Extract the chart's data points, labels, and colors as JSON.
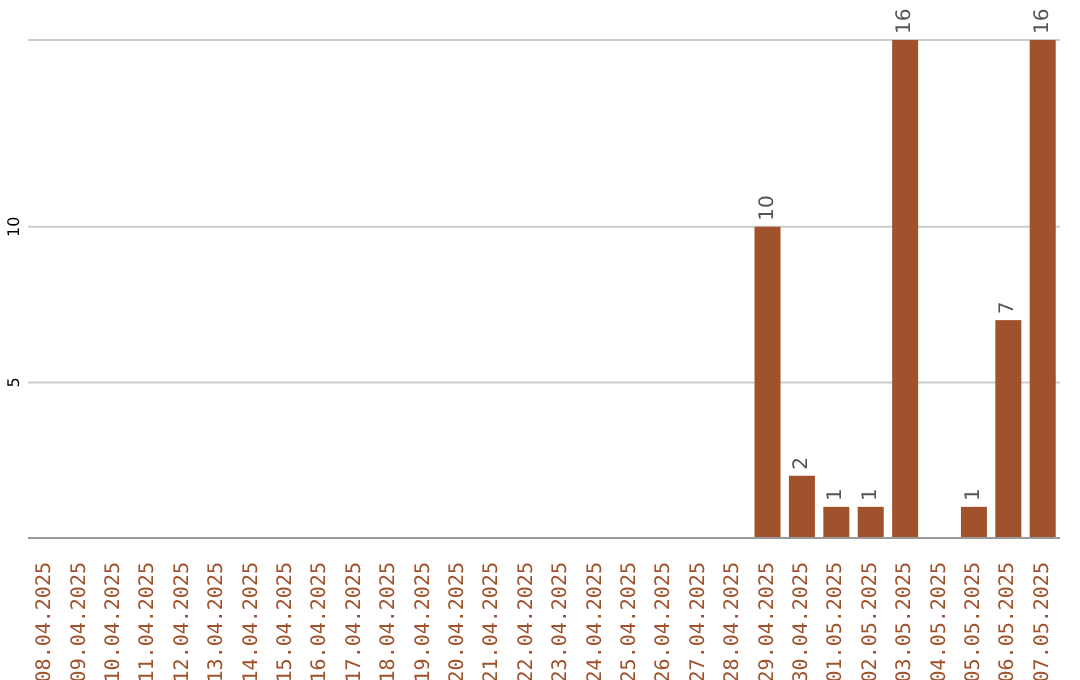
{
  "chart_data": {
    "type": "bar",
    "categories": [
      "08.04.2025",
      "09.04.2025",
      "10.04.2025",
      "11.04.2025",
      "12.04.2025",
      "13.04.2025",
      "14.04.2025",
      "15.04.2025",
      "16.04.2025",
      "17.04.2025",
      "18.04.2025",
      "19.04.2025",
      "20.04.2025",
      "21.04.2025",
      "22.04.2025",
      "23.04.2025",
      "24.04.2025",
      "25.04.2025",
      "26.04.2025",
      "27.04.2025",
      "28.04.2025",
      "29.04.2025",
      "30.04.2025",
      "01.05.2025",
      "02.05.2025",
      "03.05.2025",
      "04.05.2025",
      "05.05.2025",
      "06.05.2025",
      "07.05.2025"
    ],
    "values": [
      0,
      0,
      0,
      0,
      0,
      0,
      0,
      0,
      0,
      0,
      0,
      0,
      0,
      0,
      0,
      0,
      0,
      0,
      0,
      0,
      0,
      10,
      2,
      1,
      1,
      16,
      0,
      1,
      7,
      16
    ],
    "value_labels": [
      null,
      null,
      null,
      null,
      null,
      null,
      null,
      null,
      null,
      null,
      null,
      null,
      null,
      null,
      null,
      null,
      null,
      null,
      null,
      null,
      null,
      "10",
      "2",
      "1",
      "1",
      "16",
      null,
      "1",
      "7",
      "16"
    ],
    "color": "#a0522d",
    "ylim": [
      0,
      16
    ],
    "yticks": [
      5,
      10
    ],
    "grid": "y"
  }
}
